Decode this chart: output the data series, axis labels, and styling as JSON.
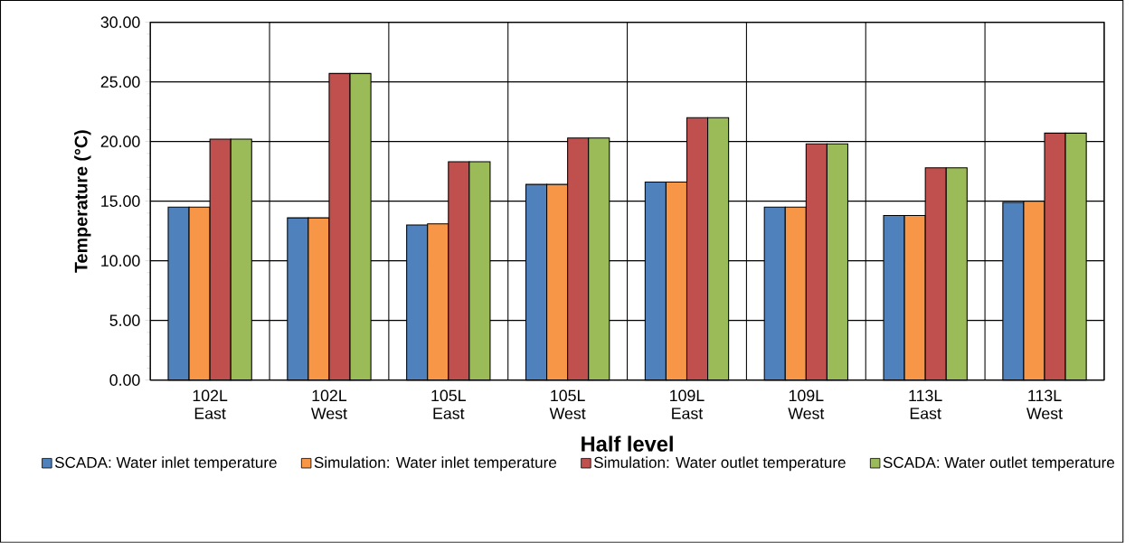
{
  "chart_data": {
    "type": "bar",
    "xlabel": "Half level",
    "ylabel": "Temperature (°C)",
    "categories": [
      "102L East",
      "102L West",
      "105L East",
      "105L West",
      "109L East",
      "109L West",
      "113L East",
      "113L West"
    ],
    "series": [
      {
        "name": "SCADA: Water inlet temperature",
        "color": "#4f81bd",
        "values": [
          14.5,
          13.6,
          13.0,
          16.4,
          16.6,
          14.5,
          13.8,
          14.9
        ]
      },
      {
        "name": "Simulation: Water inlet temperature",
        "color": "#f79646",
        "values": [
          14.5,
          13.6,
          13.1,
          16.4,
          16.6,
          14.5,
          13.8,
          15.0
        ]
      },
      {
        "name": "Simulation: Water outlet temperature",
        "color": "#c0504d",
        "values": [
          20.2,
          25.7,
          18.3,
          20.3,
          22.0,
          19.8,
          17.8,
          20.7
        ]
      },
      {
        "name": "SCADA: Water outlet temperature",
        "color": "#9bbb59",
        "values": [
          20.2,
          25.7,
          18.3,
          20.3,
          22.0,
          19.8,
          17.8,
          20.7
        ]
      }
    ],
    "ylim": [
      0,
      30
    ],
    "yticks": [
      {
        "value": 0,
        "label": "0.00"
      },
      {
        "value": 5,
        "label": "5.00"
      },
      {
        "value": 10,
        "label": "10.00"
      },
      {
        "value": 15,
        "label": "15.00"
      },
      {
        "value": 20,
        "label": "20.00"
      },
      {
        "value": 25,
        "label": "25.00"
      },
      {
        "value": 30,
        "label": "30.00"
      }
    ],
    "grid": true,
    "legend": "bottom"
  }
}
